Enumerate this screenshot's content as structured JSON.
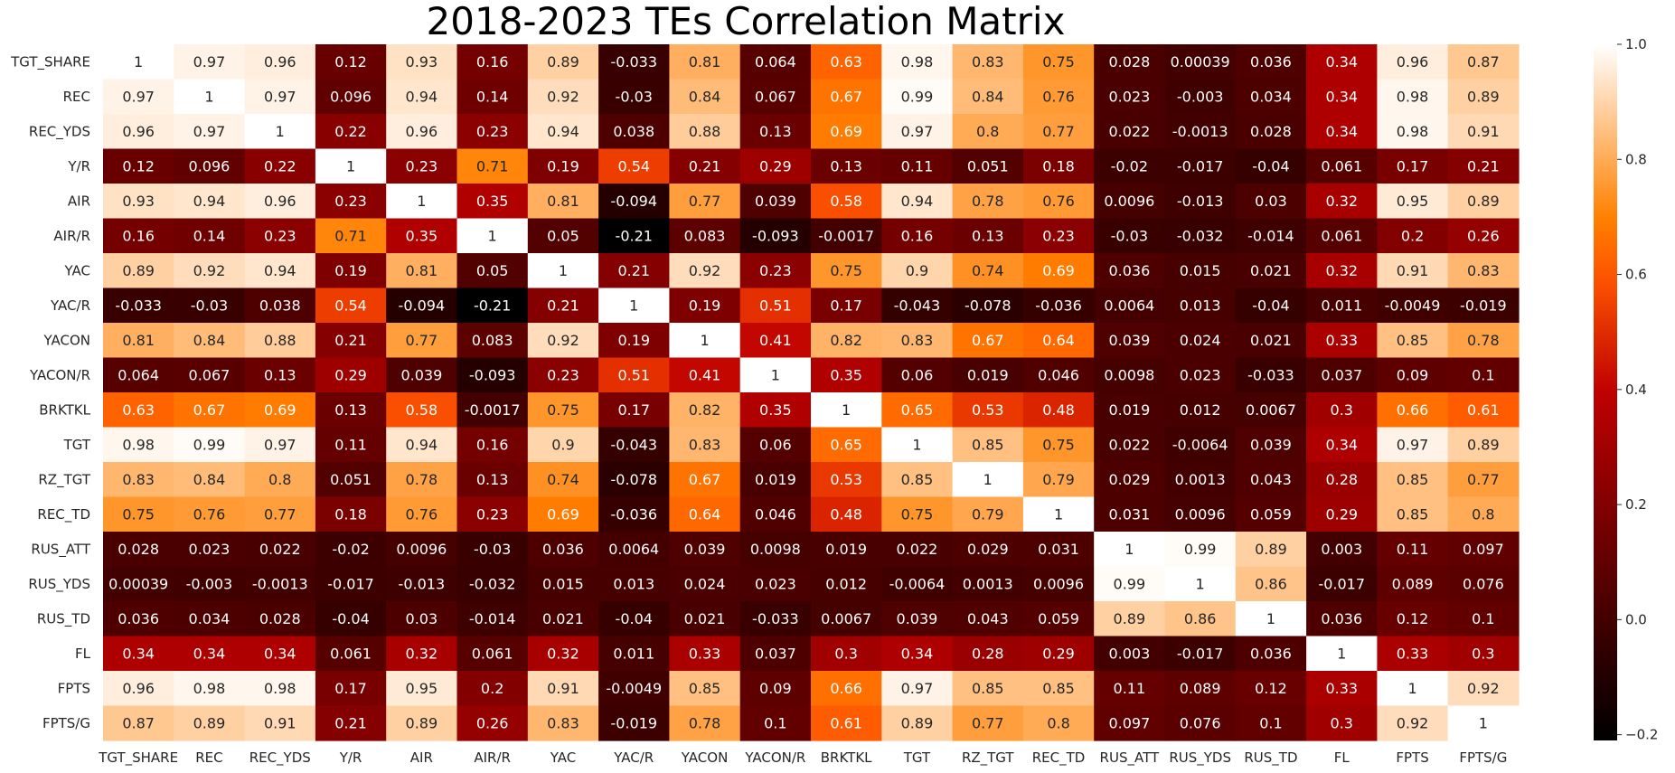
{
  "chart_data": {
    "type": "heatmap",
    "title": "2018-2023 TEs Correlation Matrix",
    "labels": [
      "TGT_SHARE",
      "REC",
      "REC_YDS",
      "Y/R",
      "AIR",
      "AIR/R",
      "YAC",
      "YAC/R",
      "YACON",
      "YACON/R",
      "BRKTKL",
      "TGT",
      "RZ_TGT",
      "REC_TD",
      "RUS_ATT",
      "RUS_YDS",
      "RUS_TD",
      "FL",
      "FPTS",
      "FPTS/G"
    ],
    "values": [
      [
        1,
        0.97,
        0.96,
        0.12,
        0.93,
        0.16,
        0.89,
        -0.033,
        0.81,
        0.064,
        0.63,
        0.98,
        0.83,
        0.75,
        0.028,
        0.00039,
        0.036,
        0.34,
        0.96,
        0.87
      ],
      [
        0.97,
        1,
        0.97,
        0.096,
        0.94,
        0.14,
        0.92,
        -0.03,
        0.84,
        0.067,
        0.67,
        0.99,
        0.84,
        0.76,
        0.023,
        -0.003,
        0.034,
        0.34,
        0.98,
        0.89
      ],
      [
        0.96,
        0.97,
        1,
        0.22,
        0.96,
        0.23,
        0.94,
        0.038,
        0.88,
        0.13,
        0.69,
        0.97,
        0.8,
        0.77,
        0.022,
        -0.0013,
        0.028,
        0.34,
        0.98,
        0.91
      ],
      [
        0.12,
        0.096,
        0.22,
        1,
        0.23,
        0.71,
        0.19,
        0.54,
        0.21,
        0.29,
        0.13,
        0.11,
        0.051,
        0.18,
        -0.02,
        -0.017,
        -0.04,
        0.061,
        0.17,
        0.21
      ],
      [
        0.93,
        0.94,
        0.96,
        0.23,
        1,
        0.35,
        0.81,
        -0.094,
        0.77,
        0.039,
        0.58,
        0.94,
        0.78,
        0.76,
        0.0096,
        -0.013,
        0.03,
        0.32,
        0.95,
        0.89
      ],
      [
        0.16,
        0.14,
        0.23,
        0.71,
        0.35,
        1,
        0.05,
        -0.21,
        0.083,
        -0.093,
        -0.0017,
        0.16,
        0.13,
        0.23,
        -0.03,
        -0.032,
        -0.014,
        0.061,
        0.2,
        0.26
      ],
      [
        0.89,
        0.92,
        0.94,
        0.19,
        0.81,
        0.05,
        1,
        0.21,
        0.92,
        0.23,
        0.75,
        0.9,
        0.74,
        0.69,
        0.036,
        0.015,
        0.021,
        0.32,
        0.91,
        0.83
      ],
      [
        -0.033,
        -0.03,
        0.038,
        0.54,
        -0.094,
        -0.21,
        0.21,
        1,
        0.19,
        0.51,
        0.17,
        -0.043,
        -0.078,
        -0.036,
        0.0064,
        0.013,
        -0.04,
        0.011,
        -0.0049,
        -0.019
      ],
      [
        0.81,
        0.84,
        0.88,
        0.21,
        0.77,
        0.083,
        0.92,
        0.19,
        1,
        0.41,
        0.82,
        0.83,
        0.67,
        0.64,
        0.039,
        0.024,
        0.021,
        0.33,
        0.85,
        0.78
      ],
      [
        0.064,
        0.067,
        0.13,
        0.29,
        0.039,
        -0.093,
        0.23,
        0.51,
        0.41,
        1,
        0.35,
        0.06,
        0.019,
        0.046,
        0.0098,
        0.023,
        -0.033,
        0.037,
        0.09,
        0.1
      ],
      [
        0.63,
        0.67,
        0.69,
        0.13,
        0.58,
        -0.0017,
        0.75,
        0.17,
        0.82,
        0.35,
        1,
        0.65,
        0.53,
        0.48,
        0.019,
        0.012,
        0.0067,
        0.3,
        0.66,
        0.61
      ],
      [
        0.98,
        0.99,
        0.97,
        0.11,
        0.94,
        0.16,
        0.9,
        -0.043,
        0.83,
        0.06,
        0.65,
        1,
        0.85,
        0.75,
        0.022,
        -0.0064,
        0.039,
        0.34,
        0.97,
        0.89
      ],
      [
        0.83,
        0.84,
        0.8,
        0.051,
        0.78,
        0.13,
        0.74,
        -0.078,
        0.67,
        0.019,
        0.53,
        0.85,
        1,
        0.79,
        0.029,
        0.0013,
        0.043,
        0.28,
        0.85,
        0.77
      ],
      [
        0.75,
        0.76,
        0.77,
        0.18,
        0.76,
        0.23,
        0.69,
        -0.036,
        0.64,
        0.046,
        0.48,
        0.75,
        0.79,
        1,
        0.031,
        0.0096,
        0.059,
        0.29,
        0.85,
        0.8
      ],
      [
        0.028,
        0.023,
        0.022,
        -0.02,
        0.0096,
        -0.03,
        0.036,
        0.0064,
        0.039,
        0.0098,
        0.019,
        0.022,
        0.029,
        0.031,
        1,
        0.99,
        0.89,
        0.003,
        0.11,
        0.097
      ],
      [
        0.00039,
        -0.003,
        -0.0013,
        -0.017,
        -0.013,
        -0.032,
        0.015,
        0.013,
        0.024,
        0.023,
        0.012,
        -0.0064,
        0.0013,
        0.0096,
        0.99,
        1,
        0.86,
        -0.017,
        0.089,
        0.076
      ],
      [
        0.036,
        0.034,
        0.028,
        -0.04,
        0.03,
        -0.014,
        0.021,
        -0.04,
        0.021,
        -0.033,
        0.0067,
        0.039,
        0.043,
        0.059,
        0.89,
        0.86,
        1,
        0.036,
        0.12,
        0.1
      ],
      [
        0.34,
        0.34,
        0.34,
        0.061,
        0.32,
        0.061,
        0.32,
        0.011,
        0.33,
        0.037,
        0.3,
        0.34,
        0.28,
        0.29,
        0.003,
        -0.017,
        0.036,
        1,
        0.33,
        0.3
      ],
      [
        0.96,
        0.98,
        0.98,
        0.17,
        0.95,
        0.2,
        0.91,
        -0.0049,
        0.85,
        0.09,
        0.66,
        0.97,
        0.85,
        0.85,
        0.11,
        0.089,
        0.12,
        0.33,
        1,
        0.92
      ],
      [
        0.87,
        0.89,
        0.91,
        0.21,
        0.89,
        0.26,
        0.83,
        -0.019,
        0.78,
        0.1,
        0.61,
        0.89,
        0.77,
        0.8,
        0.097,
        0.076,
        0.1,
        0.3,
        0.92,
        1
      ]
    ],
    "colorbar": {
      "colormap": "gist_heat",
      "range": [
        -0.21,
        1.0
      ],
      "ticks": [
        1.0,
        0.8,
        0.6,
        0.4,
        0.2,
        0.0,
        -0.2
      ],
      "tick_labels": [
        "1.0",
        "0.8",
        "0.6",
        "0.4",
        "0.2",
        "0.0",
        "−0.2"
      ]
    },
    "annotations": "cell values shown in each cell",
    "grid": false,
    "legend": "colorbar right"
  }
}
